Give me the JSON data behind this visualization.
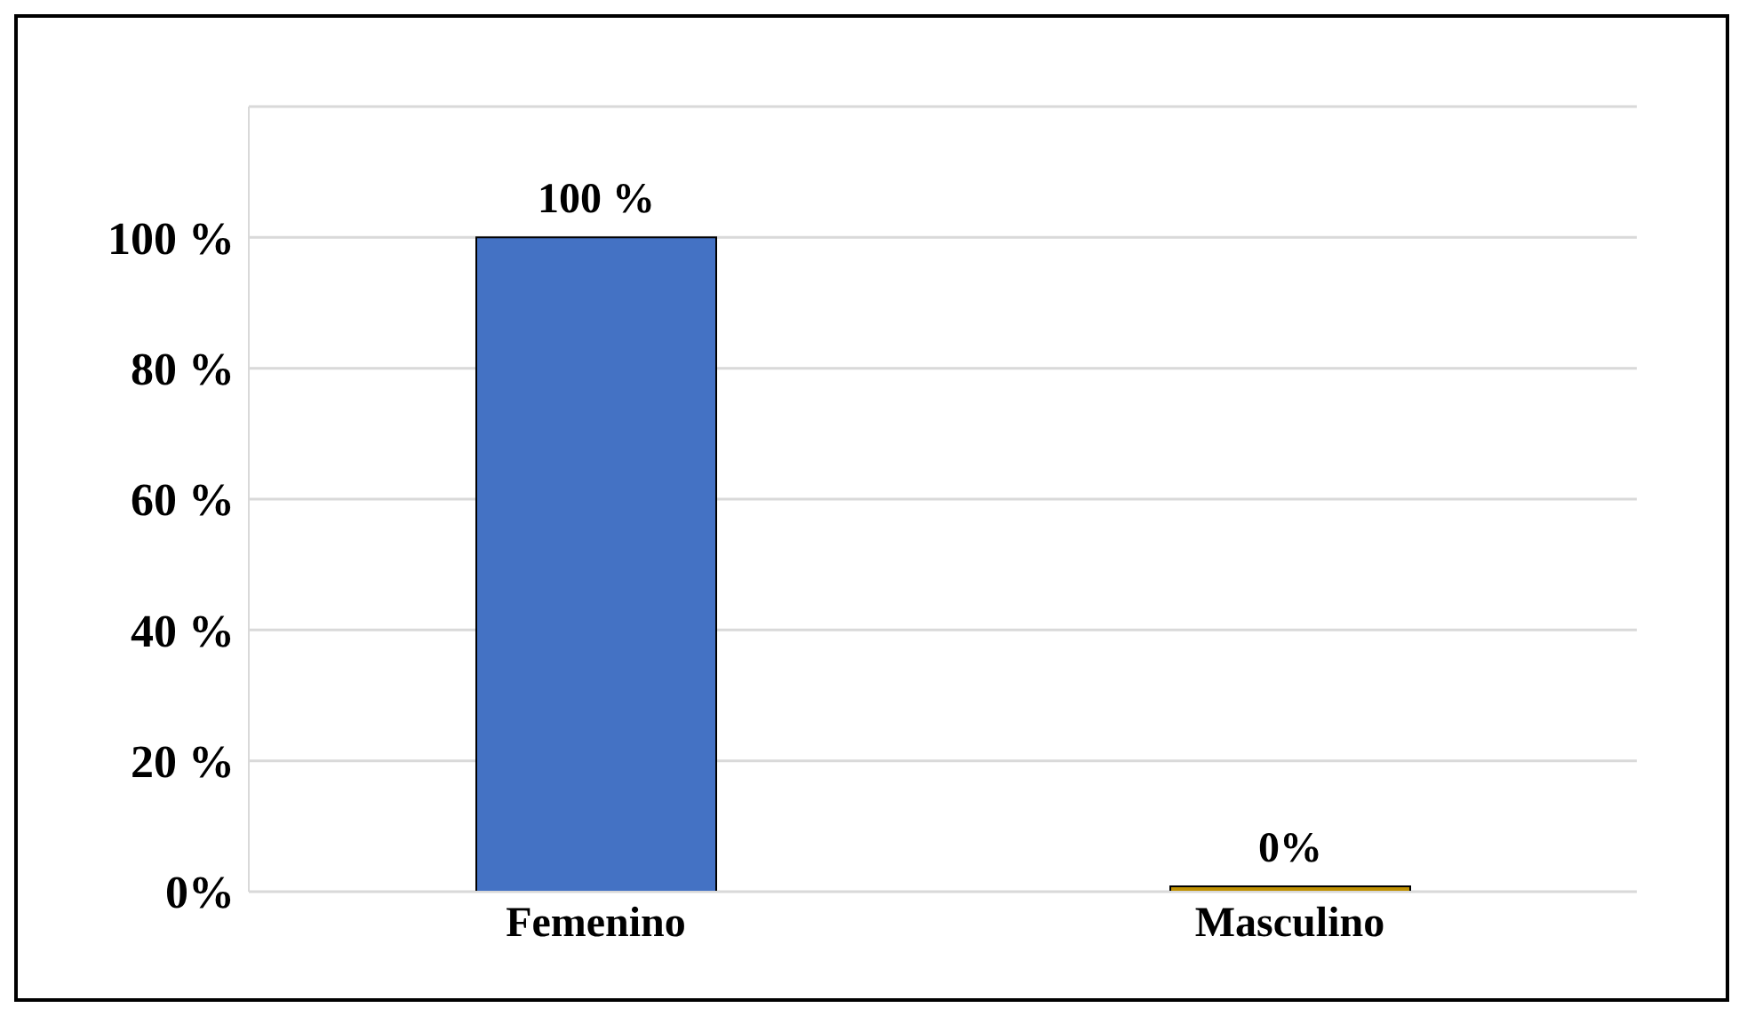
{
  "chart_data": {
    "type": "bar",
    "categories": [
      "Femenino",
      "Masculino"
    ],
    "values": [
      100,
      0
    ],
    "colors": [
      "#4472c4",
      "#bf9000"
    ],
    "value_labels": [
      "100 %",
      "0%"
    ],
    "ylim": [
      0,
      120
    ],
    "yticks": [
      {
        "value": 0,
        "label": "0%"
      },
      {
        "value": 20,
        "label": "20 %"
      },
      {
        "value": 40,
        "label": "40 %"
      },
      {
        "value": 60,
        "label": "60 %"
      },
      {
        "value": 80,
        "label": "80 %"
      },
      {
        "value": 100,
        "label": "100 %"
      },
      {
        "value": 120,
        "label": null
      }
    ],
    "grid": "y"
  }
}
